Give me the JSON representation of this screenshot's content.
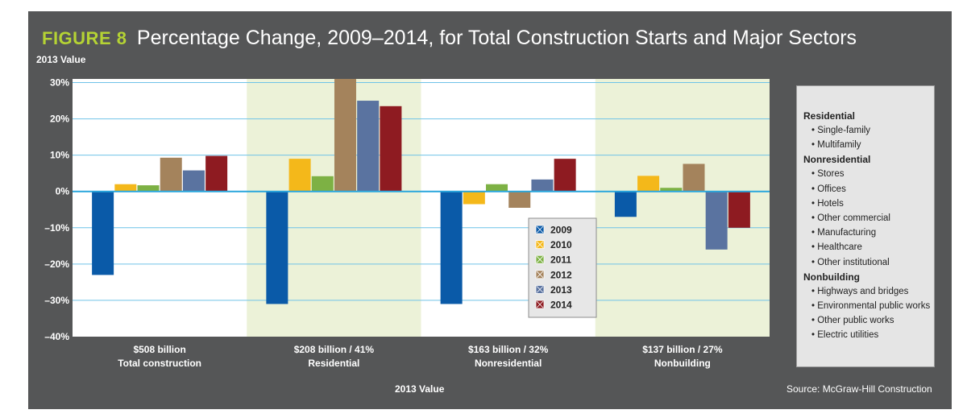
{
  "figure": {
    "label": "FIGURE 8",
    "title": "Percentage Change, 2009–2014, for Total Construction Starts and Major Sectors",
    "y_axis_title": "2013 Value",
    "x_axis_title": "2013 Value",
    "source": "Source: McGraw-Hill Construction"
  },
  "colors": {
    "frame": "#555657",
    "band": "#ecf2d8",
    "gridline": "#6fc3e8",
    "zero_line": "#2aa6dc",
    "series": [
      "#0a5aa8",
      "#f4b81a",
      "#7db144",
      "#a4835c",
      "#5a73a0",
      "#8e1b21"
    ]
  },
  "chart_data": {
    "type": "bar",
    "title": "Percentage Change, 2009–2014, for Total Construction Starts and Major Sectors",
    "xlabel": "2013 Value",
    "ylabel": "2013 Value",
    "ylim": [
      -40,
      31
    ],
    "y_ticks": [
      -40,
      -30,
      -20,
      -10,
      0,
      10,
      20,
      30
    ],
    "y_tick_labels": [
      "–40%",
      "–30%",
      "–20%",
      "–10%",
      "0%",
      "10%",
      "20%",
      "30%"
    ],
    "categories": [
      {
        "line1": "$508 billion",
        "line2": "Total construction",
        "shaded": false
      },
      {
        "line1": "$208 billion / 41%",
        "line2": "Residential",
        "shaded": true
      },
      {
        "line1": "$163 billion / 32%",
        "line2": "Nonresidential",
        "shaded": false
      },
      {
        "line1": "$137 billion / 27%",
        "line2": "Nonbuilding",
        "shaded": true
      }
    ],
    "series": [
      {
        "name": "2009",
        "values": [
          -23,
          -31,
          -31,
          -7
        ]
      },
      {
        "name": "2010",
        "values": [
          2,
          9,
          -3.5,
          4.3
        ]
      },
      {
        "name": "2011",
        "values": [
          1.7,
          4.2,
          2,
          1
        ]
      },
      {
        "name": "2012",
        "values": [
          9.3,
          31,
          -4.5,
          7.6
        ]
      },
      {
        "name": "2013",
        "values": [
          5.8,
          25,
          3.3,
          -16
        ]
      },
      {
        "name": "2014",
        "values": [
          9.8,
          23.5,
          9,
          -10
        ]
      }
    ],
    "legend_position": "center-right inside plot"
  },
  "category_legend": [
    {
      "title": "Residential",
      "items": [
        "Single-family",
        "Multifamily"
      ]
    },
    {
      "title": "Nonresidential",
      "items": [
        "Stores",
        "Offices",
        "Hotels",
        "Other commercial",
        "Manufacturing",
        "Healthcare",
        "Other institutional"
      ]
    },
    {
      "title": "Nonbuilding",
      "items": [
        "Highways and bridges",
        "Environmental public works",
        "Other public works",
        "Electric utilities"
      ]
    }
  ]
}
